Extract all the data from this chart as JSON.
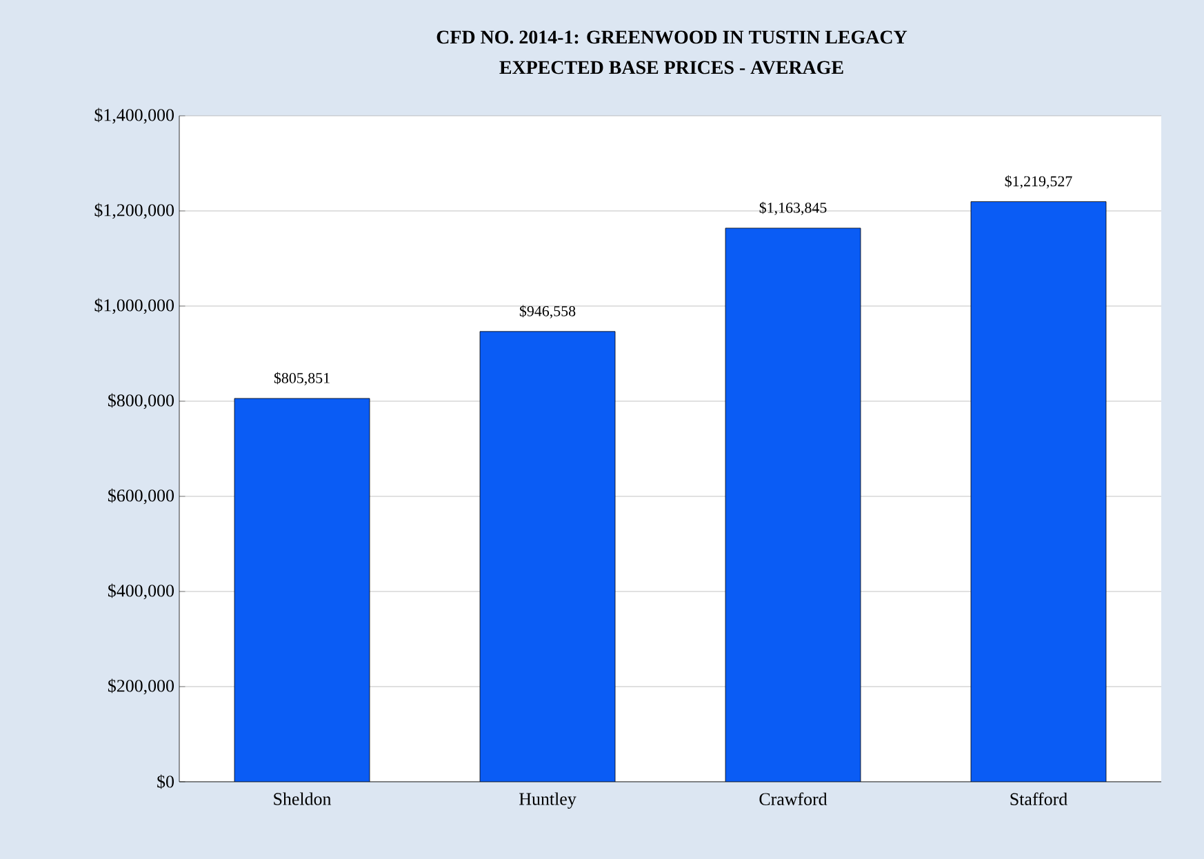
{
  "chart_data": {
    "type": "bar",
    "title": "CFD NO. 2014-1: GREENWOOD IN   TUSTIN LEGACY",
    "subtitle": "EXPECTED  BASE PRICES - AVERAGE",
    "categories": [
      "Sheldon",
      "Huntley",
      "Crawford",
      "Stafford"
    ],
    "values": [
      805851,
      946558,
      1163845,
      1219527
    ],
    "value_labels": [
      "$805,851",
      "$946,558",
      "$1,163,845",
      "$1,219,527"
    ],
    "color": "#0a5cf5",
    "ylim": [
      0,
      1400000
    ],
    "yticks": [
      {
        "value": 0,
        "label": "$0"
      },
      {
        "value": 200000,
        "label": "$200,000"
      },
      {
        "value": 400000,
        "label": "$400,000"
      },
      {
        "value": 600000,
        "label": "$600,000"
      },
      {
        "value": 800000,
        "label": "$800,000"
      },
      {
        "value": 1000000,
        "label": "$1,000,000"
      },
      {
        "value": 1200000,
        "label": "$1,200,000"
      },
      {
        "value": 1400000,
        "label": "$1,400,000"
      }
    ],
    "grid": "y"
  }
}
